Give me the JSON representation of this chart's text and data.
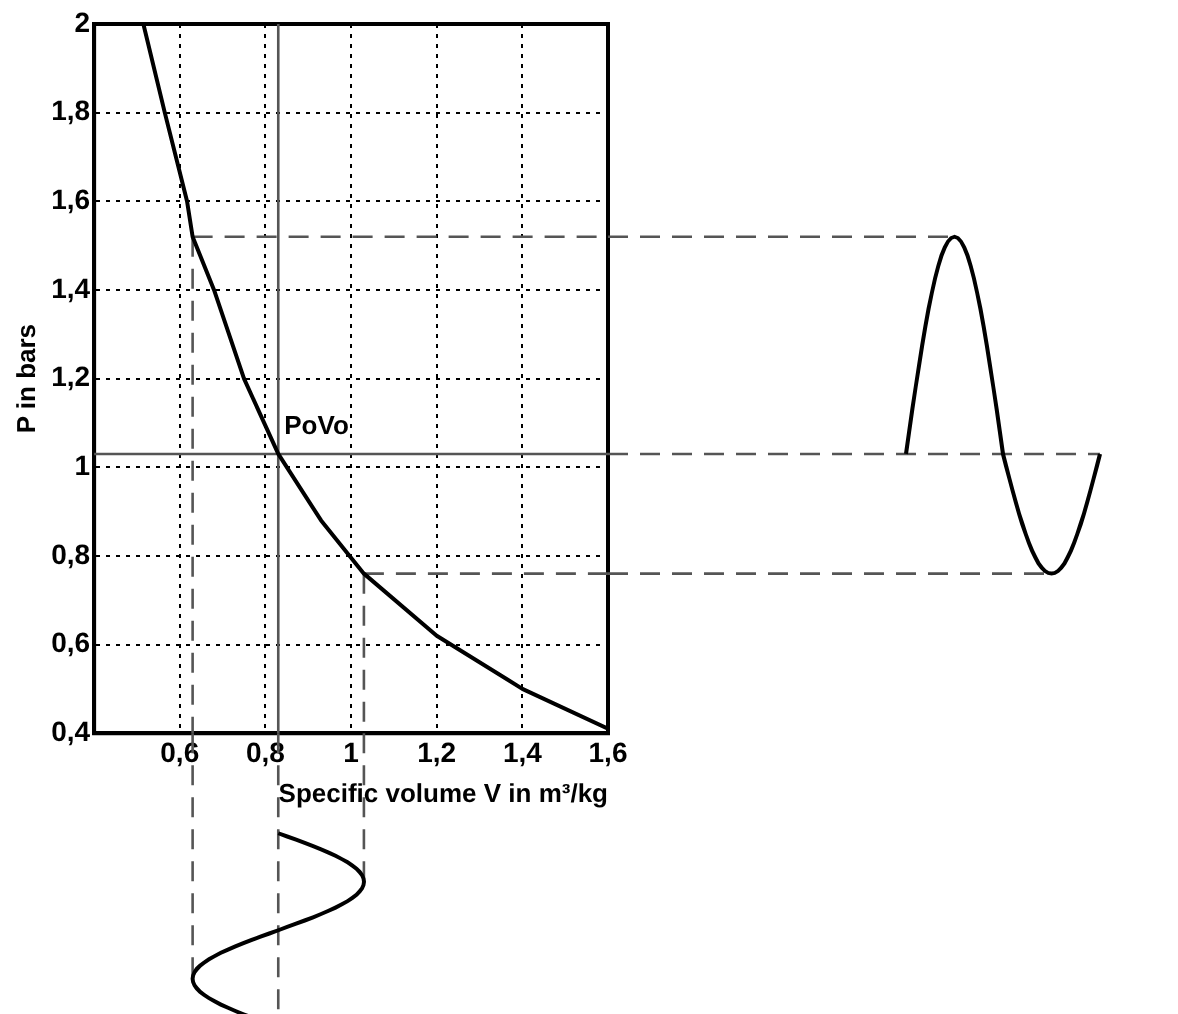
{
  "chart_data": {
    "type": "line",
    "xlabel": "Specific volume V in m³/kg",
    "ylabel": "P in bars",
    "x": [
      0.515,
      0.565,
      0.617,
      0.63,
      0.68,
      0.75,
      0.83,
      0.93,
      1.03,
      1.2,
      1.4,
      1.6
    ],
    "series": [
      {
        "color": "#000000",
        "values": [
          2.0,
          1.8,
          1.6,
          1.52,
          1.4,
          1.2,
          1.03,
          0.88,
          0.76,
          0.62,
          0.5,
          0.41
        ]
      }
    ],
    "xlim": [
      0.4,
      1.6
    ],
    "xticks": [
      {
        "value": 0.6,
        "label": "0,6"
      },
      {
        "value": 0.8,
        "label": "0,8"
      },
      1,
      {
        "value": 1.2,
        "label": "1,2"
      },
      {
        "value": 1.4,
        "label": "1,4"
      },
      {
        "value": 1.6,
        "label": "1,6"
      }
    ],
    "ylim": [
      0.4,
      2
    ],
    "yticks": [
      {
        "value": 0.4,
        "label": "0,4"
      },
      {
        "value": 0.6,
        "label": "0,6"
      },
      {
        "value": 0.8,
        "label": "0,8"
      },
      1,
      {
        "value": 1.2,
        "label": "1,2"
      },
      {
        "value": 1.4,
        "label": "1,4"
      },
      {
        "value": 1.6,
        "label": "1,6"
      },
      {
        "value": 1.8,
        "label": "1,8"
      },
      2
    ],
    "grid": true,
    "legend": false,
    "marker": "none",
    "line_style": "solid",
    "ref_lines": [
      {
        "axis": "y",
        "value": 1.03,
        "color": "#555555",
        "line_style": "solid"
      },
      {
        "axis": "x",
        "value": 0.83,
        "color": "#555555",
        "line_style": "solid"
      },
      {
        "axis": "y",
        "value": 1.52,
        "color": "#555555",
        "line_style": "dashed"
      },
      {
        "axis": "y",
        "value": 0.76,
        "color": "#555555",
        "line_style": "dashed"
      },
      {
        "axis": "x",
        "value": 0.63,
        "color": "#555555",
        "line_style": "dashed"
      },
      {
        "axis": "x",
        "value": 1.03,
        "color": "#555555",
        "line_style": "dashed"
      }
    ],
    "annotations": [
      {
        "text": "PoVo",
        "x": 0.83,
        "y": 1.03
      }
    ]
  }
}
